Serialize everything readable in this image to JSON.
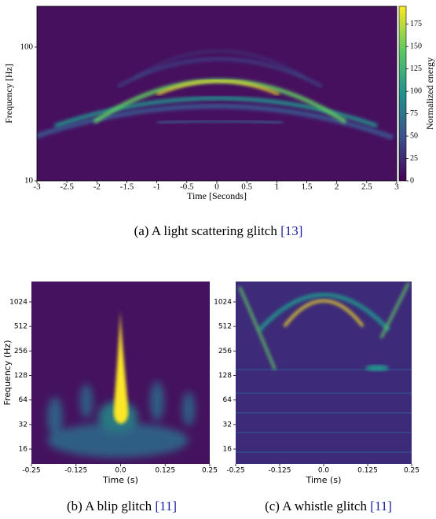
{
  "figures": [
    {
      "type": "heatmap",
      "xlabel": "Time [Seconds]",
      "ylabel": "Frequency [Hz]",
      "xlim": [
        -3,
        3
      ],
      "xticks": [
        -3,
        -2.5,
        -2,
        -1.5,
        -1,
        -0.5,
        0,
        0.5,
        1,
        1.5,
        2,
        2.5,
        3
      ],
      "ylim": [
        10,
        202
      ],
      "yticks": [
        10,
        100
      ],
      "ylog": true,
      "colorbar": {
        "label": "Normalized energy",
        "lim": [
          0,
          195
        ],
        "ticks": [
          0,
          25,
          50,
          75,
          100,
          125,
          150,
          175
        ]
      },
      "caption": "(a) A light scattering glitch",
      "citation": "[13]"
    },
    {
      "type": "heatmap",
      "xlabel": "Time (s)",
      "ylabel": "Frequency (Hz)",
      "xlim": [
        -0.25,
        0.25
      ],
      "xticks": [
        -0.25,
        -0.125,
        {
          "value": 0,
          "label": "0.0"
        },
        0.125,
        0.25
      ],
      "ylim": [
        10.5,
        1823
      ],
      "yticks": [
        16,
        32,
        64,
        128,
        256,
        512,
        1024
      ],
      "ylog": true,
      "caption": "(b) A blip glitch",
      "citation": "[11]"
    },
    {
      "type": "heatmap",
      "xlabel": "Time (s)",
      "xlim": [
        -0.25,
        0.25
      ],
      "xticks": [
        -0.25,
        -0.125,
        {
          "value": 0,
          "label": "0.0"
        },
        0.125,
        0.25
      ],
      "ylim": [
        10.5,
        1823
      ],
      "yticks": [
        16,
        32,
        64,
        128,
        256,
        512,
        1024
      ],
      "ylog": true,
      "caption": "(c) A whistle glitch",
      "citation": "[11]"
    }
  ]
}
